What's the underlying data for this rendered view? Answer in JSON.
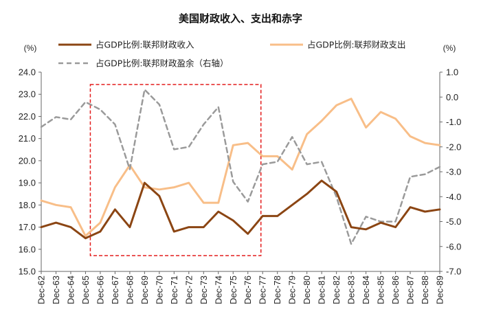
{
  "chart_data": {
    "type": "line",
    "title": "美国财政收入、支出和赤字",
    "left_unit": "(%)",
    "right_unit": "(%)",
    "categories": [
      "Dec-62",
      "Dec-63",
      "Dec-64",
      "Dec-65",
      "Dec-66",
      "Dec-67",
      "Dec-68",
      "Dec-69",
      "Dec-70",
      "Dec-71",
      "Dec-72",
      "Dec-73",
      "Dec-74",
      "Dec-75",
      "Dec-76",
      "Dec-77",
      "Dec-78",
      "Dec-79",
      "Dec-80",
      "Dec-81",
      "Dec-82",
      "Dec-83",
      "Dec-84",
      "Dec-85",
      "Dec-86",
      "Dec-87",
      "Dec-88",
      "Dec-89"
    ],
    "left_ylim": [
      15.0,
      24.0
    ],
    "left_ticks": [
      "24.0",
      "23.0",
      "22.0",
      "21.0",
      "20.0",
      "19.0",
      "18.0",
      "17.0",
      "16.0",
      "15.0"
    ],
    "right_ylim": [
      -7.0,
      1.0
    ],
    "right_ticks": [
      "1.0",
      "0.0",
      "-1.0",
      "-2.0",
      "-3.0",
      "-4.0",
      "-5.0",
      "-6.0",
      "-7.0"
    ],
    "series": [
      {
        "name": "占GDP比例:联邦财政收入",
        "axis": "left",
        "color": "#8B4513",
        "style": "solid",
        "values": [
          17.0,
          17.2,
          17.0,
          16.5,
          16.8,
          17.8,
          17.0,
          19.0,
          18.4,
          16.8,
          17.0,
          17.0,
          17.7,
          17.3,
          16.7,
          17.5,
          17.5,
          18.0,
          18.5,
          19.1,
          18.6,
          17.0,
          16.9,
          17.2,
          17.0,
          17.9,
          17.7,
          17.8
        ]
      },
      {
        "name": "占GDP比例:联邦财政支出",
        "axis": "left",
        "color": "#F8BE88",
        "style": "solid",
        "values": [
          18.2,
          18.0,
          17.9,
          16.6,
          17.2,
          18.8,
          19.8,
          18.8,
          18.7,
          18.8,
          19.0,
          18.1,
          18.1,
          20.7,
          20.8,
          20.2,
          20.2,
          19.6,
          21.2,
          21.8,
          22.5,
          22.8,
          21.5,
          22.2,
          21.9,
          21.1,
          20.8,
          20.7
        ]
      },
      {
        "name": "占GDP比例:联邦财政盈余（右轴）",
        "axis": "right",
        "color": "#9A9A9A",
        "style": "dashed",
        "values": [
          -1.2,
          -0.8,
          -0.9,
          -0.2,
          -0.5,
          -1.1,
          -2.9,
          0.3,
          -0.3,
          -2.1,
          -2.0,
          -1.1,
          -0.4,
          -3.4,
          -4.2,
          -2.7,
          -2.6,
          -1.6,
          -2.7,
          -2.6,
          -4.0,
          -5.9,
          -4.8,
          -5.0,
          -5.0,
          -3.2,
          -3.1,
          -2.8
        ]
      }
    ],
    "highlight_box": {
      "from": "Dec-65",
      "to": "Dec-76",
      "color": "#E31B1B"
    },
    "grid": false,
    "legend_position": "top"
  }
}
